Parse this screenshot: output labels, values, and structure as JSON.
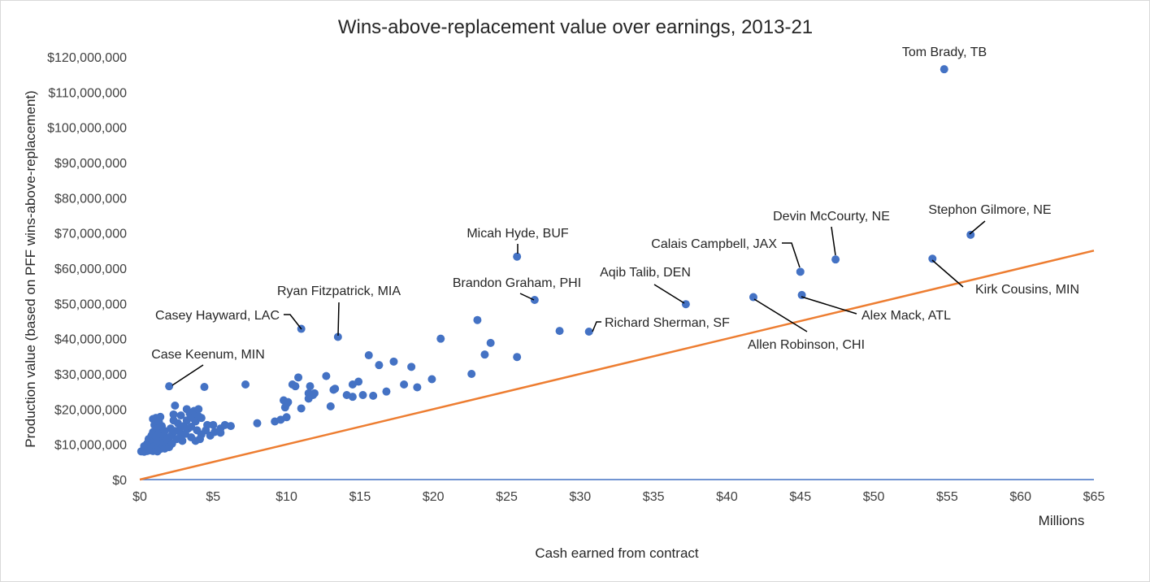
{
  "chart_data": {
    "type": "scatter",
    "title": "Wins-above-replacement value over earnings, 2013-21",
    "xlabel": "Cash earned from contract",
    "x_units_label": "Millions",
    "ylabel": "Production value (based on PFF wins-above-replacement)",
    "xlim": [
      0,
      65
    ],
    "ylim": [
      0,
      120000000
    ],
    "x_ticks": [
      0,
      5,
      10,
      15,
      20,
      25,
      30,
      35,
      40,
      45,
      50,
      55,
      60,
      65
    ],
    "x_tick_labels": [
      "$0",
      "$5",
      "$10",
      "$15",
      "$20",
      "$25",
      "$30",
      "$35",
      "$40",
      "$45",
      "$50",
      "$55",
      "$60",
      "$65"
    ],
    "y_ticks": [
      0,
      10000000,
      20000000,
      30000000,
      40000000,
      50000000,
      60000000,
      70000000,
      80000000,
      90000000,
      100000000,
      110000000,
      120000000
    ],
    "y_tick_labels": [
      "$0",
      "$10,000,000",
      "$20,000,000",
      "$30,000,000",
      "$40,000,000",
      "$50,000,000",
      "$60,000,000",
      "$70,000,000",
      "$80,000,000",
      "$90,000,000",
      "$100,000,000",
      "$110,000,000",
      "$120,000,000"
    ],
    "grid": false,
    "legend": "none",
    "colors": {
      "points": "#4472c4",
      "trend": "#ed7d31",
      "axis": "#4472c4"
    },
    "reference_line": {
      "x": [
        0,
        65
      ],
      "y": [
        0,
        65000000
      ]
    },
    "points": [
      [
        0.1,
        8000000
      ],
      [
        0.2,
        8200000
      ],
      [
        0.3,
        7900000
      ],
      [
        0.3,
        9500000
      ],
      [
        0.4,
        8600000
      ],
      [
        0.5,
        10200000
      ],
      [
        0.5,
        8100000
      ],
      [
        0.6,
        11500000
      ],
      [
        0.6,
        9000000
      ],
      [
        0.7,
        8300000
      ],
      [
        0.8,
        10000000
      ],
      [
        0.8,
        12500000
      ],
      [
        0.8,
        9200000
      ],
      [
        0.9,
        17200000
      ],
      [
        0.9,
        13500000
      ],
      [
        0.9,
        8100000
      ],
      [
        1.0,
        15500000
      ],
      [
        1.0,
        11000000
      ],
      [
        1.0,
        9500000
      ],
      [
        1.1,
        17500000
      ],
      [
        1.1,
        12200000
      ],
      [
        1.1,
        8400000
      ],
      [
        1.2,
        14500000
      ],
      [
        1.2,
        10500000
      ],
      [
        1.2,
        8000000
      ],
      [
        1.3,
        16500000
      ],
      [
        1.3,
        13000000
      ],
      [
        1.3,
        9100000
      ],
      [
        1.4,
        17800000
      ],
      [
        1.4,
        11800000
      ],
      [
        1.4,
        8700000
      ],
      [
        1.5,
        15200000
      ],
      [
        1.5,
        10200000
      ],
      [
        1.6,
        12500000
      ],
      [
        1.6,
        9600000
      ],
      [
        1.7,
        13800000
      ],
      [
        1.7,
        8800000
      ],
      [
        1.8,
        11000000
      ],
      [
        1.8,
        9800000
      ],
      [
        1.9,
        10500000
      ],
      [
        2.0,
        12000000
      ],
      [
        2.0,
        9200000
      ],
      [
        2.1,
        14500000
      ],
      [
        2.2,
        12800000
      ],
      [
        2.2,
        10200000
      ],
      [
        2.3,
        18500000
      ],
      [
        2.3,
        16800000
      ],
      [
        2.4,
        21000000
      ],
      [
        2.4,
        13800000
      ],
      [
        2.5,
        11500000
      ],
      [
        2.6,
        16000000
      ],
      [
        2.7,
        14000000
      ],
      [
        2.8,
        18200000
      ],
      [
        2.8,
        12500000
      ],
      [
        2.9,
        11000000
      ],
      [
        3.0,
        15200000
      ],
      [
        3.1,
        13000000
      ],
      [
        3.2,
        20000000
      ],
      [
        3.2,
        16800000
      ],
      [
        3.3,
        14500000
      ],
      [
        3.4,
        18800000
      ],
      [
        3.5,
        12000000
      ],
      [
        3.5,
        15000000
      ],
      [
        3.6,
        17500000
      ],
      [
        3.7,
        19500000
      ],
      [
        3.8,
        11000000
      ],
      [
        3.8,
        16500000
      ],
      [
        3.9,
        14000000
      ],
      [
        4.0,
        20000000
      ],
      [
        4.0,
        18000000
      ],
      [
        4.1,
        11500000
      ],
      [
        4.2,
        17500000
      ],
      [
        4.2,
        12800000
      ],
      [
        4.4,
        26300000
      ],
      [
        4.5,
        14000000
      ],
      [
        4.6,
        15500000
      ],
      [
        4.8,
        12500000
      ],
      [
        5.0,
        15500000
      ],
      [
        5.1,
        13500000
      ],
      [
        5.5,
        14500000
      ],
      [
        5.5,
        13300000
      ],
      [
        5.8,
        15500000
      ],
      [
        6.2,
        15200000
      ],
      [
        7.2,
        27000000
      ],
      [
        8.0,
        16000000
      ],
      [
        9.2,
        16500000
      ],
      [
        9.6,
        17000000
      ],
      [
        9.8,
        22500000
      ],
      [
        9.9,
        20500000
      ],
      [
        10.0,
        17700000
      ],
      [
        10.0,
        21500000
      ],
      [
        10.1,
        22000000
      ],
      [
        10.4,
        27000000
      ],
      [
        10.6,
        26500000
      ],
      [
        10.8,
        29000000
      ],
      [
        11.0,
        20200000
      ],
      [
        11.5,
        23000000
      ],
      [
        11.5,
        24500000
      ],
      [
        11.6,
        26500000
      ],
      [
        11.8,
        24000000
      ],
      [
        11.9,
        24500000
      ],
      [
        12.7,
        29400000
      ],
      [
        13.0,
        20800000
      ],
      [
        13.2,
        25500000
      ],
      [
        13.3,
        25800000
      ],
      [
        14.1,
        24000000
      ],
      [
        14.5,
        23500000
      ],
      [
        14.5,
        27000000
      ],
      [
        14.9,
        27800000
      ],
      [
        15.2,
        24000000
      ],
      [
        15.6,
        35300000
      ],
      [
        15.9,
        23800000
      ],
      [
        16.3,
        32500000
      ],
      [
        16.8,
        25000000
      ],
      [
        17.3,
        33500000
      ],
      [
        18.0,
        27000000
      ],
      [
        18.5,
        32000000
      ],
      [
        18.9,
        26200000
      ],
      [
        19.9,
        28500000
      ],
      [
        20.5,
        40000000
      ],
      [
        22.6,
        30000000
      ],
      [
        23.0,
        45300000
      ],
      [
        23.5,
        35500000
      ],
      [
        23.9,
        38800000
      ],
      [
        25.7,
        34800000
      ],
      [
        28.6,
        42200000
      ]
    ],
    "labeled_points": [
      {
        "label": "Tom Brady, TB",
        "x": 54.8,
        "y": 116500000
      },
      {
        "label": "Stephon Gilmore, NE",
        "x": 56.6,
        "y": 69500000
      },
      {
        "label": "Devin McCourty, NE",
        "x": 47.4,
        "y": 62500000
      },
      {
        "label": "Calais Campbell, JAX",
        "x": 45.0,
        "y": 59000000
      },
      {
        "label": "Kirk Cousins, MIN",
        "x": 54.0,
        "y": 62700000
      },
      {
        "label": "Alex Mack, ATL",
        "x": 45.1,
        "y": 52400000
      },
      {
        "label": "Allen Robinson, CHI",
        "x": 41.8,
        "y": 51800000
      },
      {
        "label": "Micah Hyde, BUF",
        "x": 25.7,
        "y": 63300000
      },
      {
        "label": "Brandon Graham, PHI",
        "x": 26.9,
        "y": 51000000
      },
      {
        "label": "Aqib Talib, DEN",
        "x": 37.2,
        "y": 49800000
      },
      {
        "label": "Richard Sherman, SF",
        "x": 30.6,
        "y": 42000000
      },
      {
        "label": "Ryan Fitzpatrick, MIA",
        "x": 13.5,
        "y": 40500000
      },
      {
        "label": "Casey Hayward, LAC",
        "x": 11.0,
        "y": 42800000
      },
      {
        "label": "Case Keenum, MIN",
        "x": 2.0,
        "y": 26500000
      }
    ]
  }
}
